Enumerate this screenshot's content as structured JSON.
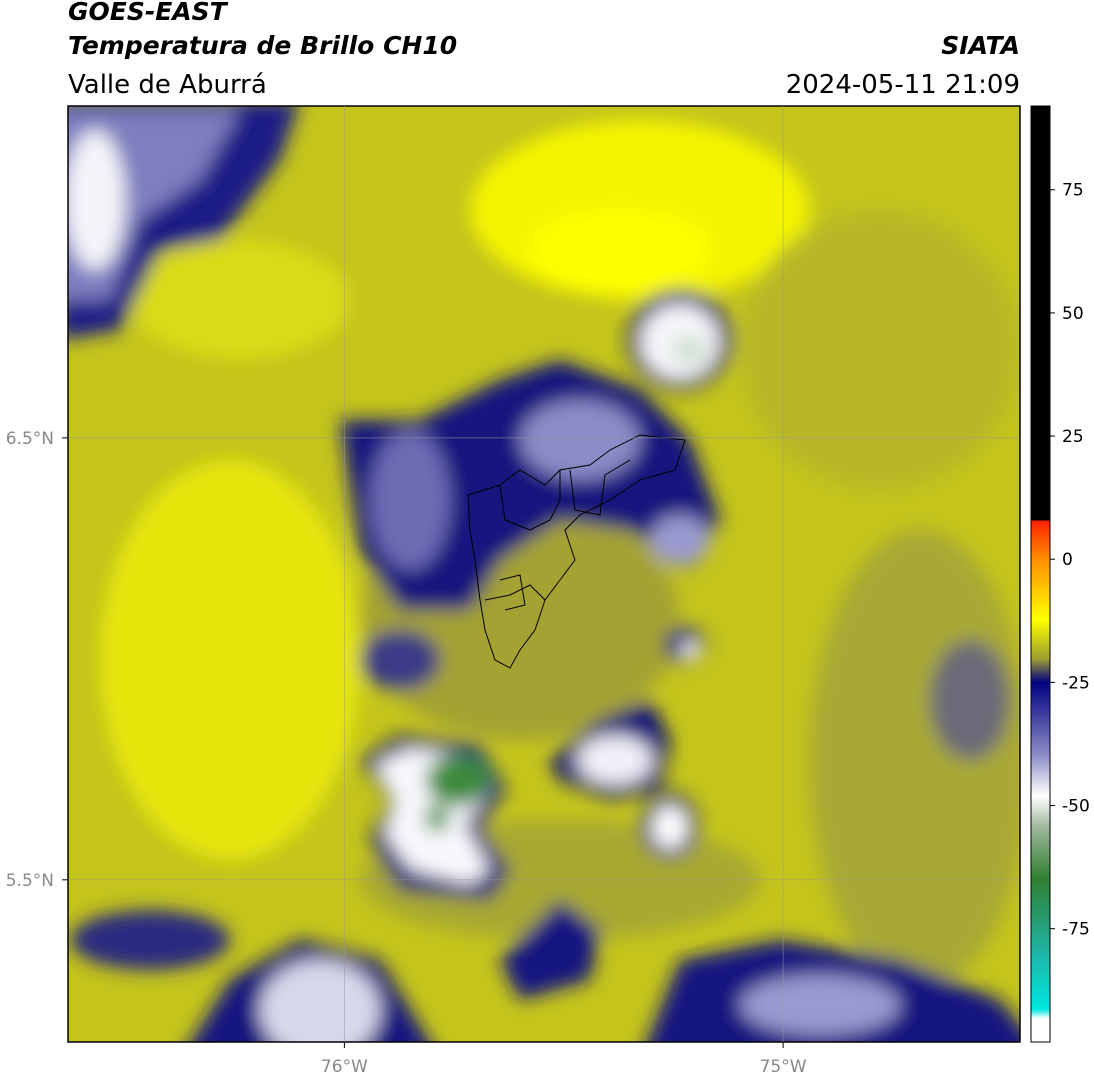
{
  "header": {
    "title": "GOES-EAST",
    "subtitle": "Temperatura de Brillo CH10",
    "region": "Valle de Aburrá",
    "source": "SIATA",
    "timestamp": "2024-05-11 21:09"
  },
  "map": {
    "xlim": [
      -76.63,
      -74.46
    ],
    "ylim": [
      5.133,
      7.251
    ],
    "xticks": [
      {
        "value": -76,
        "label": "76°W"
      },
      {
        "value": -75,
        "label": "75°W"
      }
    ],
    "yticks": [
      {
        "value": 6.5,
        "label": "6.5°N"
      },
      {
        "value": 5.5,
        "label": "5.5°N"
      }
    ],
    "grid": true
  },
  "colorbar": {
    "lim": [
      -98,
      92
    ],
    "ticks": [
      75,
      50,
      25,
      0,
      -25,
      -50,
      -75
    ]
  }
}
